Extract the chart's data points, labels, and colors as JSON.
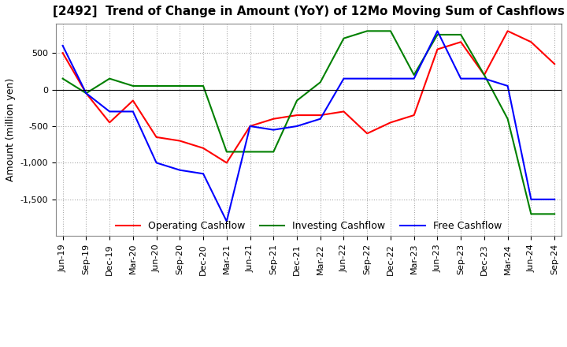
{
  "title": "[2492]  Trend of Change in Amount (YoY) of 12Mo Moving Sum of Cashflows",
  "ylabel": "Amount (million yen)",
  "x_labels": [
    "Jun-19",
    "Sep-19",
    "Dec-19",
    "Mar-20",
    "Jun-20",
    "Sep-20",
    "Dec-20",
    "Mar-21",
    "Jun-21",
    "Sep-21",
    "Dec-21",
    "Mar-22",
    "Jun-22",
    "Sep-22",
    "Dec-22",
    "Mar-23",
    "Jun-23",
    "Sep-23",
    "Dec-23",
    "Mar-24",
    "Jun-24",
    "Sep-24"
  ],
  "operating": [
    500,
    -50,
    -450,
    -150,
    -650,
    -700,
    -800,
    -1000,
    -500,
    -400,
    -350,
    -350,
    -300,
    -600,
    -450,
    -350,
    550,
    650,
    200,
    800,
    650,
    350
  ],
  "investing": [
    150,
    -50,
    150,
    50,
    50,
    50,
    50,
    -850,
    -850,
    -850,
    -150,
    100,
    700,
    800,
    800,
    200,
    750,
    750,
    200,
    -400,
    -1700,
    -1700
  ],
  "free": [
    600,
    -50,
    -300,
    -300,
    -1000,
    -1100,
    -1150,
    -1800,
    -500,
    -550,
    -500,
    -400,
    150,
    150,
    150,
    150,
    800,
    150,
    150,
    50,
    -1500,
    -1500
  ],
  "ylim": [
    -2000,
    900
  ],
  "yticks": [
    500,
    0,
    -500,
    -1000,
    -1500
  ],
  "line_colors": {
    "operating": "#ff0000",
    "investing": "#008000",
    "free": "#0000ff"
  },
  "grid_color": "#aaaaaa",
  "grid_style": "dotted",
  "background_color": "#ffffff",
  "title_fontsize": 11,
  "label_fontsize": 9,
  "tick_fontsize": 8,
  "legend_fontsize": 9
}
